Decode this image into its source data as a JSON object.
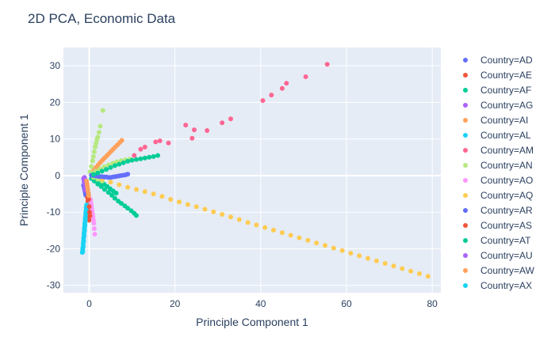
{
  "chart_data": {
    "type": "scatter",
    "title": "2D PCA, Economic Data",
    "xlabel": "Principle Component 1",
    "ylabel": "Principle Component 1",
    "xlim": [
      -6,
      82
    ],
    "ylim": [
      -32,
      35
    ],
    "xticks": [
      0,
      20,
      40,
      60,
      80
    ],
    "yticks": [
      -30,
      -20,
      -10,
      0,
      10,
      20,
      30
    ],
    "grid": true,
    "legend": "right",
    "series": [
      {
        "name": "Country=AD",
        "color": "#636efa",
        "x": [
          -1.2,
          -1.1,
          -1.0,
          -0.9,
          -1.3,
          -0.8,
          -1.0
        ],
        "y": [
          -3.0,
          -3.6,
          -4.2,
          -4.8,
          -2.6,
          -5.3,
          -3.3
        ]
      },
      {
        "name": "Country=AE",
        "color": "#EF553B",
        "x": [
          -0.4,
          -0.3,
          -0.3,
          -0.2,
          -0.2,
          -0.1,
          -0.1,
          0.0
        ],
        "y": [
          -6.0,
          -7.0,
          -8.0,
          -9.0,
          -10.0,
          -10.8,
          -11.5,
          -12.2
        ]
      },
      {
        "name": "Country=AF",
        "color": "#00cc96",
        "x": [
          0.5,
          1.2,
          2.0,
          2.8,
          3.6,
          4.5,
          5.3,
          6.0,
          6.8,
          7.5,
          8.3,
          9.0,
          9.8,
          10.5,
          11.0,
          0.7,
          1.4,
          2.1,
          2.8,
          3.5,
          4.2,
          4.9,
          5.6,
          6.3
        ],
        "y": [
          -0.8,
          -1.5,
          -2.3,
          -3.0,
          -3.8,
          -4.6,
          -5.4,
          -6.2,
          -7.0,
          -7.6,
          -8.3,
          -8.9,
          -9.6,
          -10.3,
          -10.9,
          -0.4,
          -0.9,
          -1.4,
          -1.9,
          -2.4,
          -3.0,
          -3.6,
          -4.2,
          -4.8
        ]
      },
      {
        "name": "Country=AG",
        "color": "#ab63fa",
        "x": [
          -1.2,
          -1.1,
          -0.9,
          -0.8,
          -1.3,
          -1.0
        ],
        "y": [
          -1.5,
          -2.2,
          -2.8,
          -3.4,
          -0.8,
          -4.0
        ]
      },
      {
        "name": "Country=AI",
        "color": "#FFA15A",
        "x": [
          0.6,
          1.1,
          1.6,
          2.1,
          2.6,
          3.1,
          3.6,
          4.1,
          4.6,
          5.1,
          5.6,
          6.1,
          6.6,
          7.1,
          7.6
        ],
        "y": [
          0.8,
          1.5,
          2.2,
          2.9,
          3.6,
          4.2,
          4.8,
          5.4,
          6.0,
          6.6,
          7.2,
          7.8,
          8.4,
          9.0,
          9.6
        ]
      },
      {
        "name": "Country=AL",
        "color": "#19d3f3",
        "x": [
          -0.6,
          -0.7,
          -0.7,
          -0.8,
          -0.8,
          -0.9,
          -0.9,
          -1.0,
          -1.0,
          -1.1,
          -1.1,
          -1.2,
          -1.2,
          -1.3,
          -1.3,
          -1.4,
          -1.4,
          -1.5,
          -1.5,
          -1.6
        ],
        "y": [
          -8.0,
          -8.7,
          -9.4,
          -10.1,
          -10.8,
          -11.5,
          -12.2,
          -12.9,
          -13.6,
          -14.3,
          -15.0,
          -15.7,
          -16.4,
          -17.1,
          -17.8,
          -18.5,
          -19.2,
          -19.9,
          -20.5,
          -21.0
        ]
      },
      {
        "name": "Country=AM",
        "color": "#FF6692",
        "x": [
          10.5,
          12.0,
          13.0,
          15.5,
          16.5,
          18.5,
          22.5,
          24.0,
          24.5,
          27.5,
          31.0,
          33.0,
          40.5,
          42.5,
          45.0,
          46.0,
          50.5,
          55.5
        ],
        "y": [
          5.5,
          7.2,
          7.8,
          9.2,
          9.5,
          8.9,
          13.8,
          10.2,
          12.5,
          12.3,
          14.4,
          15.5,
          20.5,
          22.0,
          23.8,
          25.2,
          27.0,
          30.4
        ]
      },
      {
        "name": "Country=AN",
        "color": "#B6E880",
        "x": [
          0.2,
          0.5,
          0.8,
          1.0,
          1.2,
          1.4,
          1.6,
          1.8,
          2.0,
          2.3,
          2.6,
          3.2,
          0.6,
          1.5,
          2.5,
          3.5,
          4.5,
          5.5,
          6.5,
          7.5,
          8.5,
          9.5,
          1.0,
          2.0,
          3.0
        ],
        "y": [
          1.0,
          2.5,
          4.0,
          5.2,
          6.5,
          7.8,
          8.8,
          9.8,
          10.5,
          11.8,
          13.5,
          17.8,
          0.6,
          1.2,
          1.8,
          2.4,
          2.9,
          3.4,
          3.8,
          4.1,
          4.3,
          4.5,
          -0.5,
          -1.0,
          -1.5
        ]
      },
      {
        "name": "Country=AO",
        "color": "#FF97FF",
        "x": [
          0.3,
          0.4,
          0.5,
          0.6,
          0.7,
          0.8,
          0.9,
          1.0,
          1.1,
          1.2,
          1.3
        ],
        "y": [
          -6.5,
          -7.3,
          -8.1,
          -8.9,
          -9.7,
          -10.5,
          -11.3,
          -12.1,
          -13.0,
          -14.5,
          -16.0
        ]
      },
      {
        "name": "Country=AQ",
        "color": "#FECB52",
        "x": [
          3,
          5,
          7,
          9,
          11,
          13,
          15,
          17,
          19,
          21,
          23,
          25,
          27,
          29,
          31,
          33,
          35,
          37,
          39,
          41,
          43,
          45,
          47,
          49,
          51,
          53,
          55,
          57,
          59,
          61,
          63,
          65,
          67,
          69,
          71,
          73,
          75,
          77,
          79
        ],
        "y": [
          -1.0,
          -1.8,
          -2.5,
          -3.2,
          -3.8,
          -4.4,
          -5.0,
          -5.7,
          -6.5,
          -7.2,
          -7.9,
          -8.5,
          -9.2,
          -9.9,
          -10.6,
          -11.3,
          -12.0,
          -12.8,
          -13.5,
          -14.2,
          -14.9,
          -15.6,
          -16.3,
          -17.0,
          -17.7,
          -18.4,
          -19.1,
          -19.8,
          -20.5,
          -21.2,
          -21.9,
          -22.6,
          -23.3,
          -24.0,
          -24.7,
          -25.4,
          -26.1,
          -26.8,
          -27.5
        ]
      },
      {
        "name": "Country=AR",
        "color": "#636efa",
        "x": [
          0.5,
          1.0,
          1.5,
          2.0,
          2.5,
          3.0,
          3.5,
          4.0,
          4.5,
          5.0,
          5.5,
          6.0,
          6.5,
          7.0,
          7.5,
          8.0,
          8.5,
          9.0
        ],
        "y": [
          0.1,
          0.0,
          -0.1,
          -0.2,
          -0.3,
          -0.3,
          -0.4,
          -0.4,
          -0.5,
          -0.5,
          -0.4,
          -0.3,
          -0.2,
          -0.1,
          0.0,
          0.1,
          0.2,
          0.4
        ]
      },
      {
        "name": "Country=AS",
        "color": "#EF553B",
        "x": [
          -0.2,
          -0.1,
          0.0,
          0.1,
          0.2
        ],
        "y": [
          -5.0,
          -6.5,
          -8.5,
          -10.0,
          -11.0
        ]
      },
      {
        "name": "Country=AT",
        "color": "#00cc96",
        "x": [
          1,
          2,
          3,
          4,
          5,
          6,
          7,
          8,
          9,
          10,
          11,
          12,
          13,
          14,
          15,
          16
        ],
        "y": [
          0.3,
          0.7,
          1.2,
          1.7,
          2.2,
          2.7,
          3.1,
          3.5,
          3.9,
          4.2,
          4.4,
          4.6,
          4.8,
          5.0,
          5.2,
          5.5
        ]
      },
      {
        "name": "Country=AU",
        "color": "#ab63fa",
        "x": [
          -1.1,
          -1.0,
          -0.9,
          -0.8,
          -0.7
        ],
        "y": [
          -0.5,
          -1.0,
          -1.5,
          -2.0,
          -2.5
        ]
      },
      {
        "name": "Country=AW",
        "color": "#FFA15A",
        "x": [
          -0.6,
          -0.5,
          -0.4,
          -0.3,
          -0.2,
          -0.1
        ],
        "y": [
          -1.5,
          -2.3,
          -3.1,
          -3.9,
          -4.7,
          -5.5
        ]
      },
      {
        "name": "Country=AX",
        "color": "#19d3f3",
        "x": [
          -0.9,
          -1.0,
          -1.1,
          -1.2,
          -1.3,
          -1.4,
          -1.5
        ],
        "y": [
          -12.0,
          -13.5,
          -15.0,
          -16.5,
          -18.0,
          -19.5,
          -20.8
        ]
      }
    ]
  }
}
